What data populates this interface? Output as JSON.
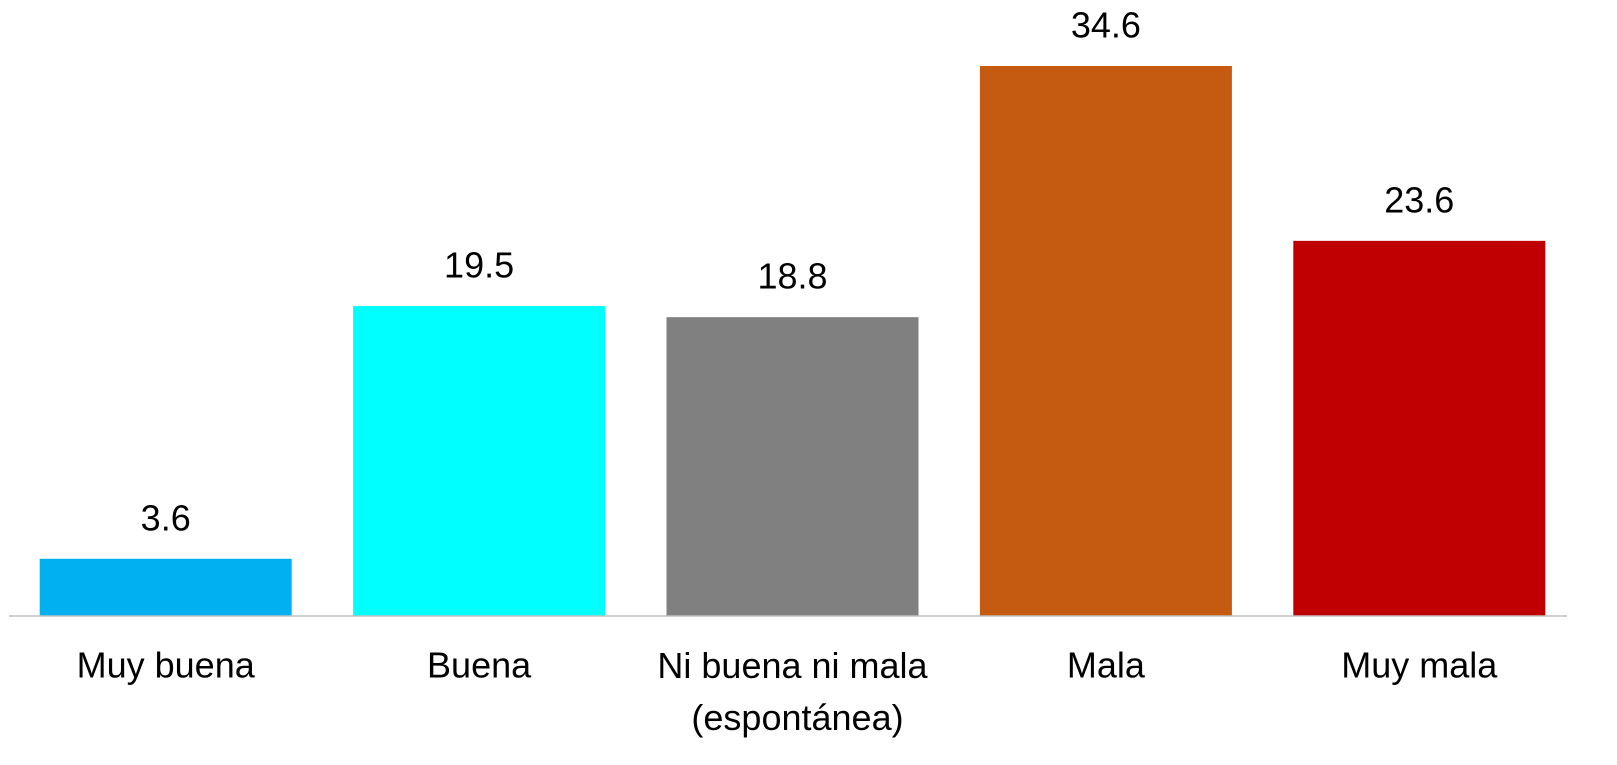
{
  "chart_data": {
    "type": "bar",
    "categories": [
      "Muy buena",
      "Buena",
      "Ni buena ni mala (espontánea)",
      "Mala",
      "Muy mala"
    ],
    "values": [
      3.6,
      19.5,
      18.8,
      34.6,
      23.6
    ],
    "colors": [
      "#00b0f0",
      "#00ffff",
      "#808080",
      "#c55a11",
      "#c00000"
    ],
    "ylim": [
      0,
      34.6
    ]
  }
}
